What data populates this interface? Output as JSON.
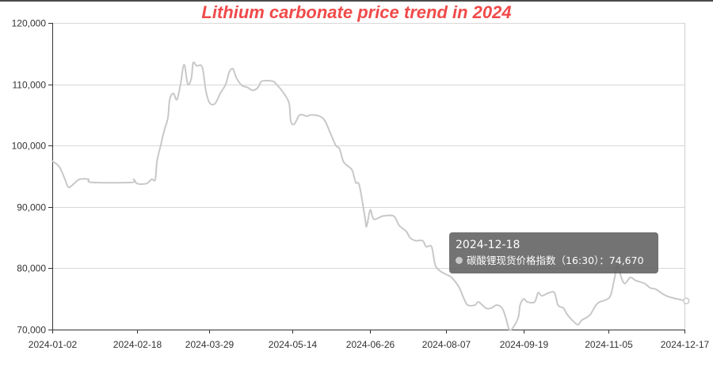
{
  "chart_data": {
    "type": "line",
    "title": "Lithium carbonate price trend in 2024",
    "xlabel": "",
    "ylabel": "",
    "x_tick_labels": [
      "2024-01-02",
      "2024-02-18",
      "2024-03-29",
      "2024-05-14",
      "2024-06-26",
      "2024-08-07",
      "2024-09-19",
      "2024-11-05",
      "2024-12-17"
    ],
    "ylim": [
      70000,
      120000
    ],
    "y_ticks": [
      70000,
      80000,
      90000,
      100000,
      110000,
      120000
    ],
    "y_tick_labels": [
      "70,000",
      "80,000",
      "90,000",
      "100,000",
      "110,000",
      "120,000"
    ],
    "grid": true,
    "series": [
      {
        "name": "碳酸锂现货价格指数（16:30）",
        "color": "#c8c8c8",
        "points": [
          [
            "2024-01-02",
            97500
          ],
          [
            "2024-01-06",
            96500
          ],
          [
            "2024-01-09",
            94500
          ],
          [
            "2024-01-11",
            93200
          ],
          [
            "2024-01-14",
            93800
          ],
          [
            "2024-01-17",
            94500
          ],
          [
            "2024-01-22",
            94500
          ],
          [
            "2024-01-24",
            94000
          ],
          [
            "2024-02-15",
            94000
          ],
          [
            "2024-02-16",
            94500
          ],
          [
            "2024-02-18",
            93800
          ],
          [
            "2024-02-23",
            93800
          ],
          [
            "2024-02-26",
            94500
          ],
          [
            "2024-02-28",
            94500
          ],
          [
            "2024-02-29",
            97500
          ],
          [
            "2024-03-02",
            100000
          ],
          [
            "2024-03-04",
            102500
          ],
          [
            "2024-03-06",
            104500
          ],
          [
            "2024-03-07",
            107500
          ],
          [
            "2024-03-09",
            108500
          ],
          [
            "2024-03-11",
            107500
          ],
          [
            "2024-03-13",
            110000
          ],
          [
            "2024-03-15",
            113200
          ],
          [
            "2024-03-17",
            110000
          ],
          [
            "2024-03-19",
            111000
          ],
          [
            "2024-03-20",
            113500
          ],
          [
            "2024-03-22",
            113000
          ],
          [
            "2024-03-25",
            112800
          ],
          [
            "2024-03-27",
            109000
          ],
          [
            "2024-03-29",
            107000
          ],
          [
            "2024-04-01",
            106800
          ],
          [
            "2024-04-04",
            108500
          ],
          [
            "2024-04-07",
            110000
          ],
          [
            "2024-04-09",
            112000
          ],
          [
            "2024-04-11",
            112500
          ],
          [
            "2024-04-13",
            111000
          ],
          [
            "2024-04-16",
            109800
          ],
          [
            "2024-04-19",
            109500
          ],
          [
            "2024-04-22",
            109000
          ],
          [
            "2024-04-25",
            109500
          ],
          [
            "2024-04-27",
            110500
          ],
          [
            "2024-05-03",
            110500
          ],
          [
            "2024-05-05",
            110000
          ],
          [
            "2024-05-08",
            109000
          ],
          [
            "2024-05-12",
            107000
          ],
          [
            "2024-05-13",
            104000
          ],
          [
            "2024-05-15",
            103500
          ],
          [
            "2024-05-18",
            105000
          ],
          [
            "2024-05-22",
            104800
          ],
          [
            "2024-05-24",
            105000
          ],
          [
            "2024-05-29",
            104800
          ],
          [
            "2024-06-01",
            104000
          ],
          [
            "2024-06-04",
            102000
          ],
          [
            "2024-06-07",
            100000
          ],
          [
            "2024-06-09",
            99500
          ],
          [
            "2024-06-11",
            97500
          ],
          [
            "2024-06-13",
            96800
          ],
          [
            "2024-06-16",
            96000
          ],
          [
            "2024-06-18",
            94000
          ],
          [
            "2024-06-20",
            93500
          ],
          [
            "2024-06-23",
            88500
          ],
          [
            "2024-06-24",
            86800
          ],
          [
            "2024-06-26",
            89500
          ],
          [
            "2024-06-28",
            88000
          ],
          [
            "2024-07-03",
            88500
          ],
          [
            "2024-07-09",
            88500
          ],
          [
            "2024-07-12",
            87000
          ],
          [
            "2024-07-16",
            86000
          ],
          [
            "2024-07-18",
            85000
          ],
          [
            "2024-07-21",
            84500
          ],
          [
            "2024-07-25",
            84500
          ],
          [
            "2024-07-27",
            83500
          ],
          [
            "2024-07-30",
            83500
          ],
          [
            "2024-08-01",
            80500
          ],
          [
            "2024-08-04",
            79500
          ],
          [
            "2024-08-07",
            79000
          ],
          [
            "2024-08-10",
            78500
          ],
          [
            "2024-08-14",
            77000
          ],
          [
            "2024-08-17",
            75000
          ],
          [
            "2024-08-19",
            74000
          ],
          [
            "2024-08-23",
            74000
          ],
          [
            "2024-08-25",
            74500
          ],
          [
            "2024-08-29",
            73500
          ],
          [
            "2024-09-01",
            73500
          ],
          [
            "2024-09-04",
            74000
          ],
          [
            "2024-09-07",
            73500
          ],
          [
            "2024-09-09",
            72000
          ],
          [
            "2024-09-11",
            70000
          ],
          [
            "2024-09-13",
            70300
          ],
          [
            "2024-09-16",
            72000
          ],
          [
            "2024-09-17",
            74000
          ],
          [
            "2024-09-19",
            75000
          ],
          [
            "2024-09-21",
            74500
          ],
          [
            "2024-09-25",
            74500
          ],
          [
            "2024-09-27",
            76000
          ],
          [
            "2024-09-29",
            75500
          ],
          [
            "2024-10-03",
            76000
          ],
          [
            "2024-10-06",
            76000
          ],
          [
            "2024-10-08",
            74000
          ],
          [
            "2024-10-11",
            73500
          ],
          [
            "2024-10-13",
            72500
          ],
          [
            "2024-10-16",
            71500
          ],
          [
            "2024-10-19",
            70800
          ],
          [
            "2024-10-21",
            71500
          ],
          [
            "2024-10-24",
            72000
          ],
          [
            "2024-10-26",
            72500
          ],
          [
            "2024-10-29",
            74000
          ],
          [
            "2024-10-31",
            74500
          ],
          [
            "2024-11-03",
            74800
          ],
          [
            "2024-11-06",
            75500
          ],
          [
            "2024-11-08",
            78000
          ],
          [
            "2024-11-10",
            80500
          ],
          [
            "2024-11-12",
            78500
          ],
          [
            "2024-11-14",
            77500
          ],
          [
            "2024-11-17",
            78500
          ],
          [
            "2024-11-20",
            78000
          ],
          [
            "2024-11-25",
            77500
          ],
          [
            "2024-11-28",
            76800
          ],
          [
            "2024-12-01",
            76600
          ],
          [
            "2024-12-04",
            76000
          ],
          [
            "2024-12-07",
            75500
          ],
          [
            "2024-12-10",
            75200
          ],
          [
            "2024-12-13",
            75000
          ],
          [
            "2024-12-16",
            74800
          ],
          [
            "2024-12-18",
            74670
          ]
        ]
      }
    ],
    "tooltip": {
      "date": "2024-12-18",
      "series_name": "碳酸锂现货价格指数（16:30）",
      "value_text": "74,670"
    }
  }
}
